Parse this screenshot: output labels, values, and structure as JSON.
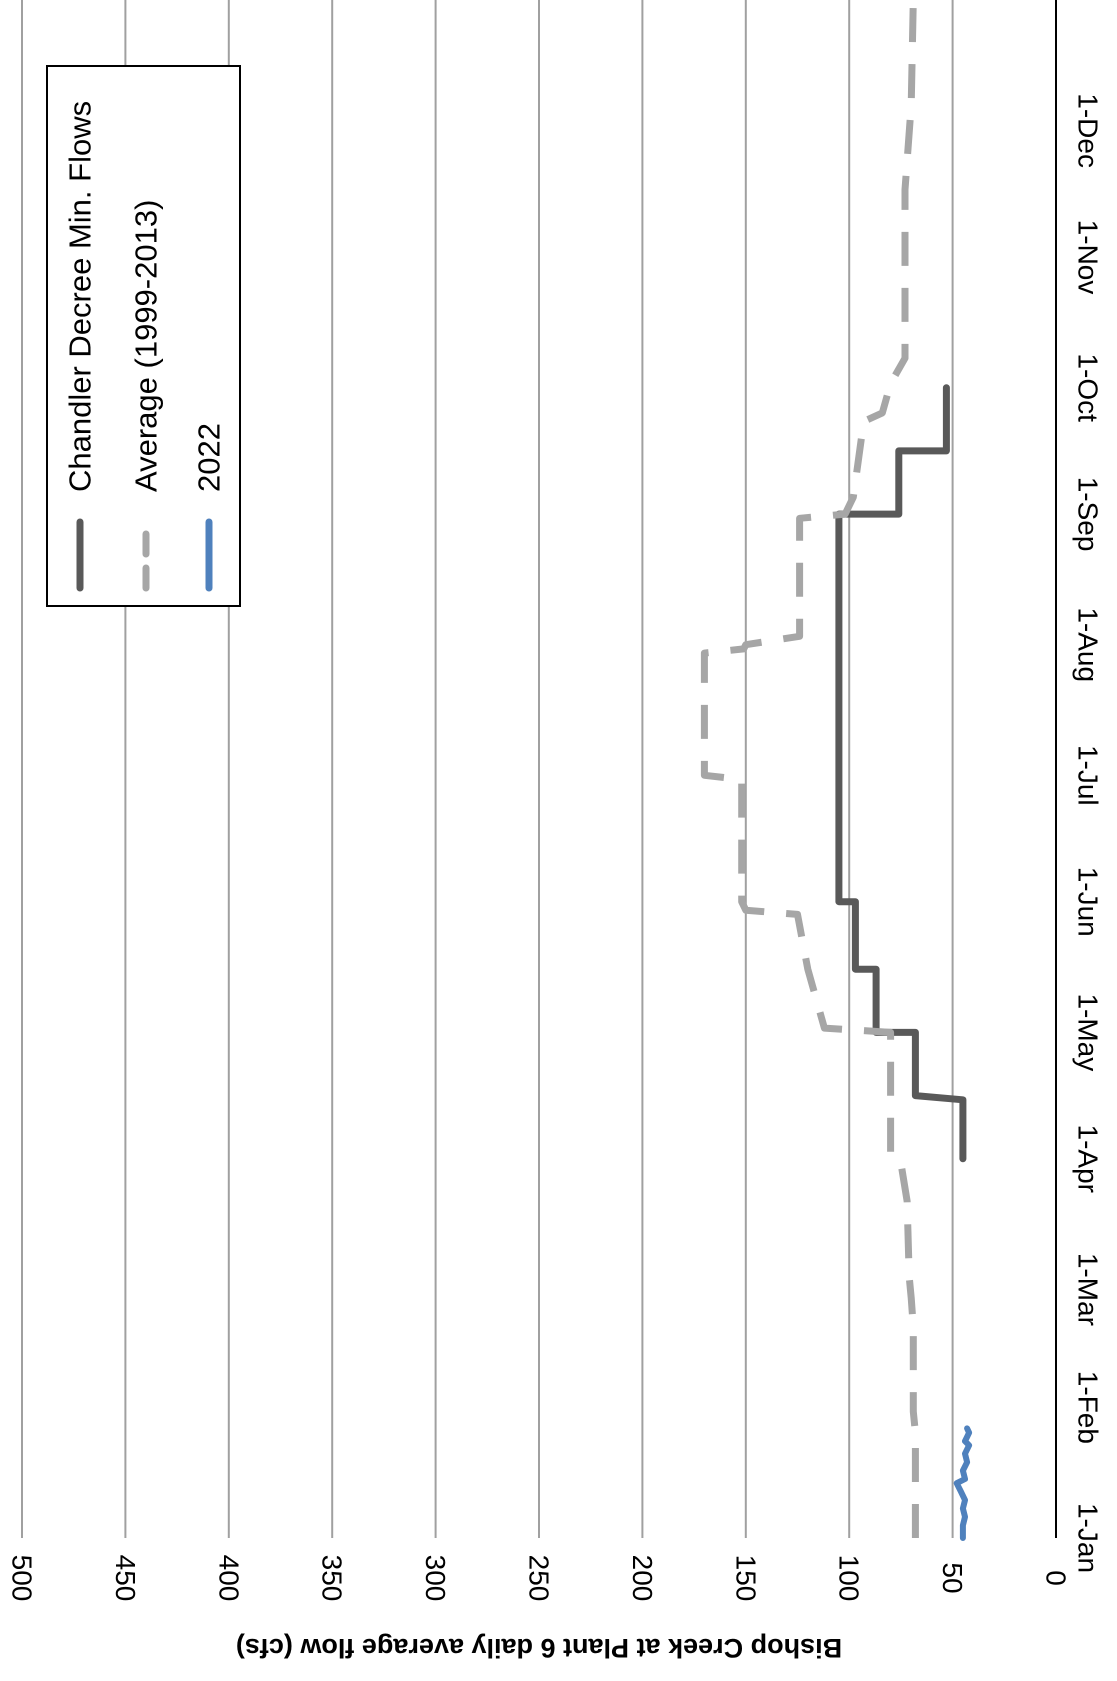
{
  "chart_data": {
    "type": "line",
    "orientation": "rotated-90-clockwise",
    "ylabel": "Bishop Creek at Plant 6 daily average flow (cfs)",
    "xlabel": "",
    "ylim": [
      0,
      500
    ],
    "yticks": [
      "0",
      "50",
      "100",
      "150",
      "200",
      "250",
      "300",
      "350",
      "400",
      "450",
      "500"
    ],
    "x_ticks": [
      {
        "label": "1-Jan",
        "day": 0
      },
      {
        "label": "1-Feb",
        "day": 31
      },
      {
        "label": "1-Mar",
        "day": 59
      },
      {
        "label": "1-Apr",
        "day": 90
      },
      {
        "label": "1-May",
        "day": 120
      },
      {
        "label": "1-Jun",
        "day": 151
      },
      {
        "label": "1-Jul",
        "day": 181
      },
      {
        "label": "1-Aug",
        "day": 212
      },
      {
        "label": "1-Sep",
        "day": 243
      },
      {
        "label": "1-Oct",
        "day": 273
      },
      {
        "label": "1-Nov",
        "day": 304
      },
      {
        "label": "1-Dec",
        "day": 334
      }
    ],
    "xlim_days": [
      0,
      365
    ],
    "grid": true,
    "legend_position": "top-right",
    "colors": {
      "chandler": "#595959",
      "average": "#a6a6a6",
      "y2022": "#4f81bd",
      "grid": "#a0a0a0"
    },
    "series": [
      {
        "name": "Chandler Decree Min. Flows",
        "key": "chandler",
        "style": "solid",
        "points": [
          [
            90,
            45
          ],
          [
            104,
            45
          ],
          [
            105,
            68
          ],
          [
            120,
            68
          ],
          [
            120,
            87
          ],
          [
            135,
            87
          ],
          [
            135,
            97
          ],
          [
            151,
            97
          ],
          [
            151,
            105
          ],
          [
            243,
            105
          ],
          [
            243,
            76
          ],
          [
            258,
            76
          ],
          [
            258,
            53
          ],
          [
            273,
            53
          ]
        ]
      },
      {
        "name": "Average (1999-2013)",
        "key": "average",
        "style": "dashed",
        "points": [
          [
            0,
            68
          ],
          [
            25,
            68
          ],
          [
            30,
            69
          ],
          [
            50,
            69
          ],
          [
            57,
            70
          ],
          [
            62,
            71
          ],
          [
            80,
            72
          ],
          [
            89,
            75
          ],
          [
            91,
            80
          ],
          [
            120,
            80
          ],
          [
            121,
            112
          ],
          [
            135,
            120
          ],
          [
            148,
            125
          ],
          [
            149,
            150
          ],
          [
            151,
            152
          ],
          [
            180,
            152
          ],
          [
            181,
            170
          ],
          [
            210,
            170
          ],
          [
            211,
            151
          ],
          [
            212,
            150
          ],
          [
            214,
            124
          ],
          [
            242,
            124
          ],
          [
            243,
            102
          ],
          [
            247,
            98
          ],
          [
            265,
            93
          ],
          [
            267,
            84
          ],
          [
            274,
            80
          ],
          [
            280,
            73
          ],
          [
            320,
            73
          ],
          [
            340,
            70
          ],
          [
            365,
            69
          ]
        ]
      },
      {
        "name": "2022",
        "key": "y2022",
        "style": "solid",
        "points": [
          [
            0,
            45
          ],
          [
            3,
            45
          ],
          [
            5,
            44
          ],
          [
            7,
            45
          ],
          [
            9,
            44
          ],
          [
            11,
            46
          ],
          [
            13,
            48
          ],
          [
            14,
            44
          ],
          [
            16,
            45
          ],
          [
            18,
            43
          ],
          [
            20,
            44
          ],
          [
            22,
            42
          ],
          [
            23,
            44
          ],
          [
            24,
            43
          ],
          [
            25,
            42
          ],
          [
            26,
            43
          ]
        ]
      }
    ]
  }
}
